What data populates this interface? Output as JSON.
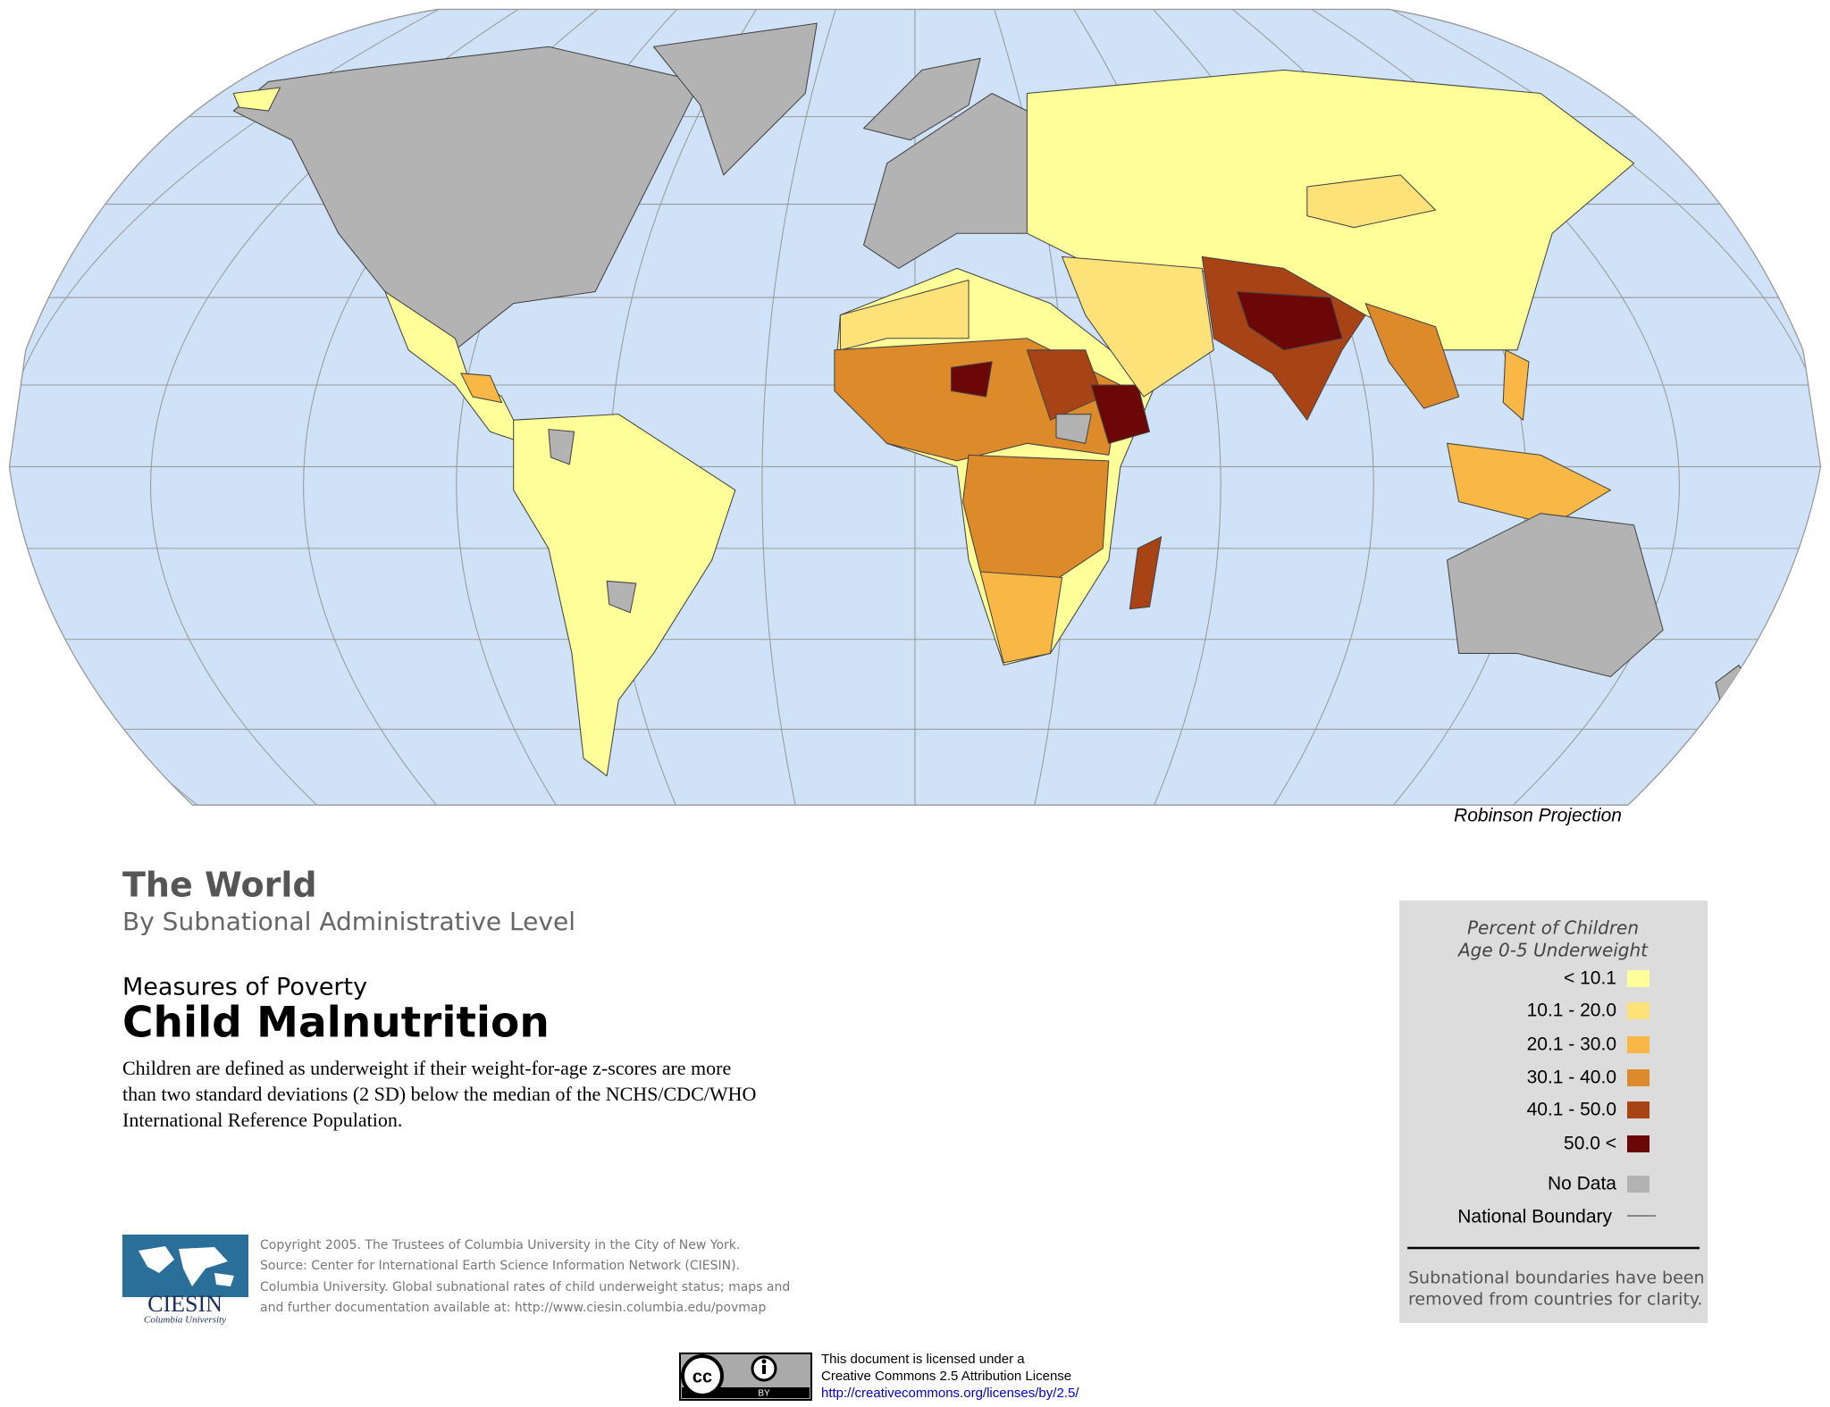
{
  "map": {
    "projection_label": "Robinson Projection"
  },
  "header": {
    "title": "The World",
    "subtitle": "By Subnational Administrative Level",
    "topic": "Measures of Poverty",
    "heading": "Child Malnutrition",
    "description": [
      "Children are defined as underweight if their weight-for-age z-scores are more",
      "than two standard deviations (2 SD) below the median of the NCHS/CDC/WHO",
      "International Reference Population."
    ]
  },
  "legend": {
    "title": [
      "Percent of Children",
      "Age 0-5 Underweight"
    ],
    "items": [
      {
        "label": "< 10.1",
        "color": "#ffff99"
      },
      {
        "label": "10.1 - 20.0",
        "color": "#fde27a"
      },
      {
        "label": "20.1 - 30.0",
        "color": "#f9b846"
      },
      {
        "label": "30.1 - 40.0",
        "color": "#dc8a2a"
      },
      {
        "label": "40.1 - 50.0",
        "color": "#a84315"
      },
      {
        "label": "50.0 <",
        "color": "#6b0707"
      },
      {
        "label": "No Data",
        "color": "#b3b3b3"
      }
    ],
    "boundary": "National Boundary",
    "note": [
      "Subnational boundaries have been",
      "removed from countries for clarity."
    ]
  },
  "footer": {
    "logo": "CIESIN",
    "logo_sub": "Columbia University",
    "copyright": [
      "Copyright 2005. The Trustees of Columbia University in the City of New York.",
      "Source: Center for International Earth Science Information Network (CIESIN).",
      "Columbia University. Global subnational rates of child underweight status; maps and",
      "and further documentation available at: http://www.ciesin.columbia.edu/povmap"
    ],
    "badge": [
      "cc",
      "BY"
    ],
    "license": [
      "This document is licensed under a",
      "Creative Commons 2.5 Attribution License",
      "http://creativecommons.org/licenses/by/2.5/"
    ]
  }
}
